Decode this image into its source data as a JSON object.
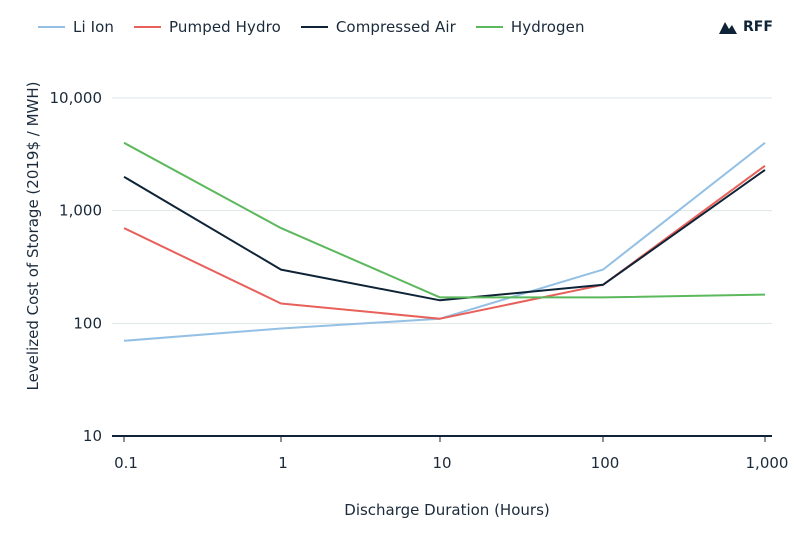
{
  "logo": {
    "text": "RFF"
  },
  "chart_data": {
    "type": "line",
    "title": "",
    "xlabel": "Discharge Duration (Hours)",
    "ylabel": "Levelized Cost of Storage (2019$ / MWH)",
    "x": [
      0.1,
      1,
      10,
      100,
      1000
    ],
    "x_tick_labels": [
      "0.1",
      "1",
      "10",
      "100",
      "1,000"
    ],
    "y_scale": "log",
    "ylim": [
      10,
      10000
    ],
    "y_ticks": [
      10,
      100,
      1000,
      10000
    ],
    "y_tick_labels": [
      "10",
      "100",
      "1,000",
      "10,000"
    ],
    "grid": true,
    "legend_position": "top-left",
    "series": [
      {
        "name": "Li Ion",
        "color": "#93c0e4",
        "values": [
          70,
          90,
          110,
          300,
          4000
        ]
      },
      {
        "name": "Pumped Hydro",
        "color": "#e8605a",
        "values": [
          700,
          150,
          110,
          220,
          2500
        ]
      },
      {
        "name": "Compressed Air",
        "color": "#0e2436",
        "values": [
          2000,
          300,
          160,
          220,
          2300
        ]
      },
      {
        "name": "Hydrogen",
        "color": "#5cb85c",
        "values": [
          4000,
          700,
          170,
          170,
          180
        ]
      }
    ]
  }
}
